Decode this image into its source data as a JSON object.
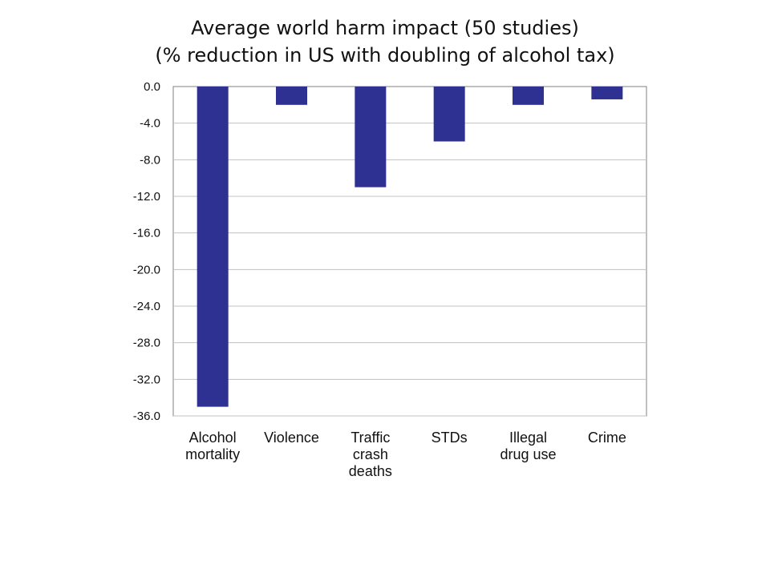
{
  "slide": {
    "title_line1": "Average world harm impact (50 studies)",
    "title_line2": "(% reduction in US with doubling of alcohol tax)"
  },
  "chart_data": {
    "type": "bar",
    "title": "Average world harm impact (50 studies) (% reduction in US with doubling of alcohol tax)",
    "categories": [
      [
        "Alcohol",
        "mortality"
      ],
      [
        "Violence"
      ],
      [
        "Traffic",
        "crash",
        "deaths"
      ],
      [
        "STDs"
      ],
      [
        "Illegal",
        "drug use"
      ],
      [
        "Crime"
      ]
    ],
    "values": [
      -35.0,
      -2.0,
      -11.0,
      -6.0,
      -2.0,
      -1.4
    ],
    "ylim": [
      -36.0,
      0.0
    ],
    "yticks": [
      "0.0",
      "-4.0",
      "-8.0",
      "-12.0",
      "-16.0",
      "-20.0",
      "-24.0",
      "-28.0",
      "-32.0",
      "-36.0"
    ],
    "ytick_values": [
      0,
      -4,
      -8,
      -12,
      -16,
      -20,
      -24,
      -28,
      -32,
      -36
    ],
    "grid": true,
    "bar_color": "#2e3192",
    "grid_color": "#c0c0c0",
    "axis_color": "#808080",
    "xlabel": "",
    "ylabel": ""
  }
}
